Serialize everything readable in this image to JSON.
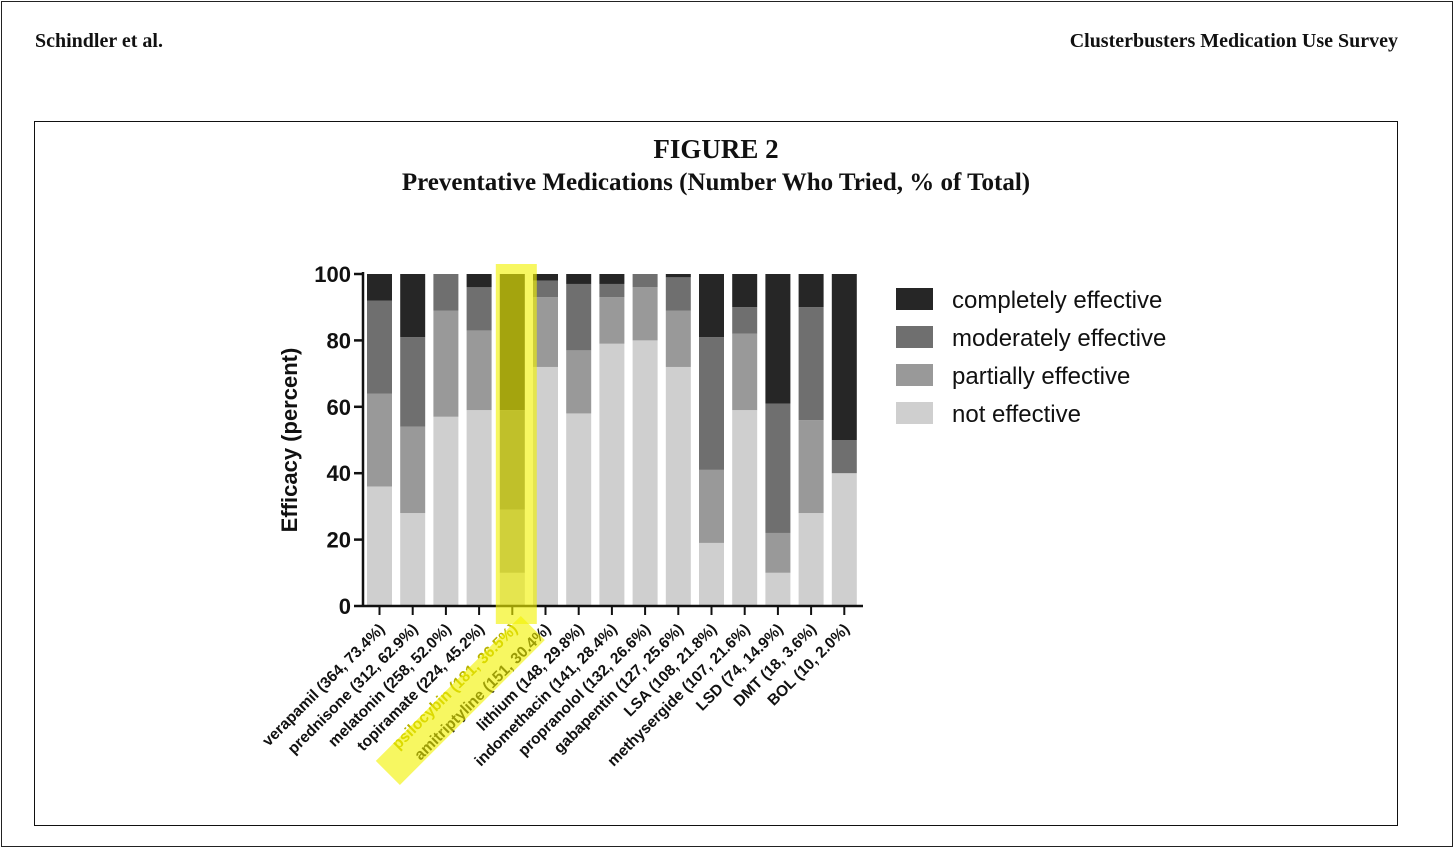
{
  "header": {
    "left": "Schindler et al.",
    "right": "Clusterbusters Medication Use Survey"
  },
  "figure": {
    "label": "FIGURE 2",
    "subtitle": "Preventative Medications (Number Who Tried, % of Total)"
  },
  "chart_data": {
    "type": "bar",
    "stacked": true,
    "title": "FIGURE 2",
    "subtitle": "Preventative Medications (Number Who Tried, % of Total)",
    "ylabel": "Efficacy (percent)",
    "xlabel": "",
    "ylim": [
      0,
      100
    ],
    "yticks": [
      0,
      20,
      40,
      60,
      80,
      100
    ],
    "grid": false,
    "legend_position": "right",
    "categories": [
      "verapamil (364, 73.4%)",
      "prednisone (312, 62.9%)",
      "melatonin (258, 52.0%)",
      "topiramate (224, 45.2%)",
      "psilocybin (181, 36.5%)",
      "amitriptyline (151, 30.4%)",
      "lithium (148, 29.8%)",
      "indomethacin (141, 28.4%)",
      "propranolol (132, 26.6%)",
      "gabapentin (127, 25.6%)",
      "LSA (108, 21.8%)",
      "methysergide (107, 21.6%)",
      "LSD (74, 14.9%)",
      "DMT (18, 3.6%)",
      "BOL (10, 2.0%)"
    ],
    "highlighted_category": "psilocybin (181, 36.5%)",
    "highlight_color": "#f2f200",
    "series": [
      {
        "name": "not effective",
        "color": "#cfcfcf",
        "values": [
          36,
          28,
          57,
          59,
          10,
          72,
          58,
          79,
          80,
          72,
          19,
          59,
          10,
          28,
          40
        ]
      },
      {
        "name": "partially effective",
        "color": "#999999",
        "values": [
          28,
          26,
          32,
          24,
          19,
          21,
          19,
          14,
          16,
          17,
          22,
          23,
          12,
          28,
          0
        ]
      },
      {
        "name": "moderately effective",
        "color": "#6f6f6f",
        "values": [
          28,
          27,
          11,
          13,
          30,
          5,
          20,
          4,
          4,
          10,
          40,
          8,
          39,
          34,
          10
        ]
      },
      {
        "name": "completely effective",
        "color": "#262626",
        "values": [
          8,
          19,
          0,
          4,
          41,
          2,
          3,
          3,
          0,
          1,
          19,
          10,
          39,
          10,
          50
        ]
      }
    ],
    "legend": [
      {
        "name": "completely effective",
        "color": "#262626"
      },
      {
        "name": "moderately effective",
        "color": "#6f6f6f"
      },
      {
        "name": "partially effective",
        "color": "#999999"
      },
      {
        "name": "not effective",
        "color": "#cfcfcf"
      }
    ]
  }
}
